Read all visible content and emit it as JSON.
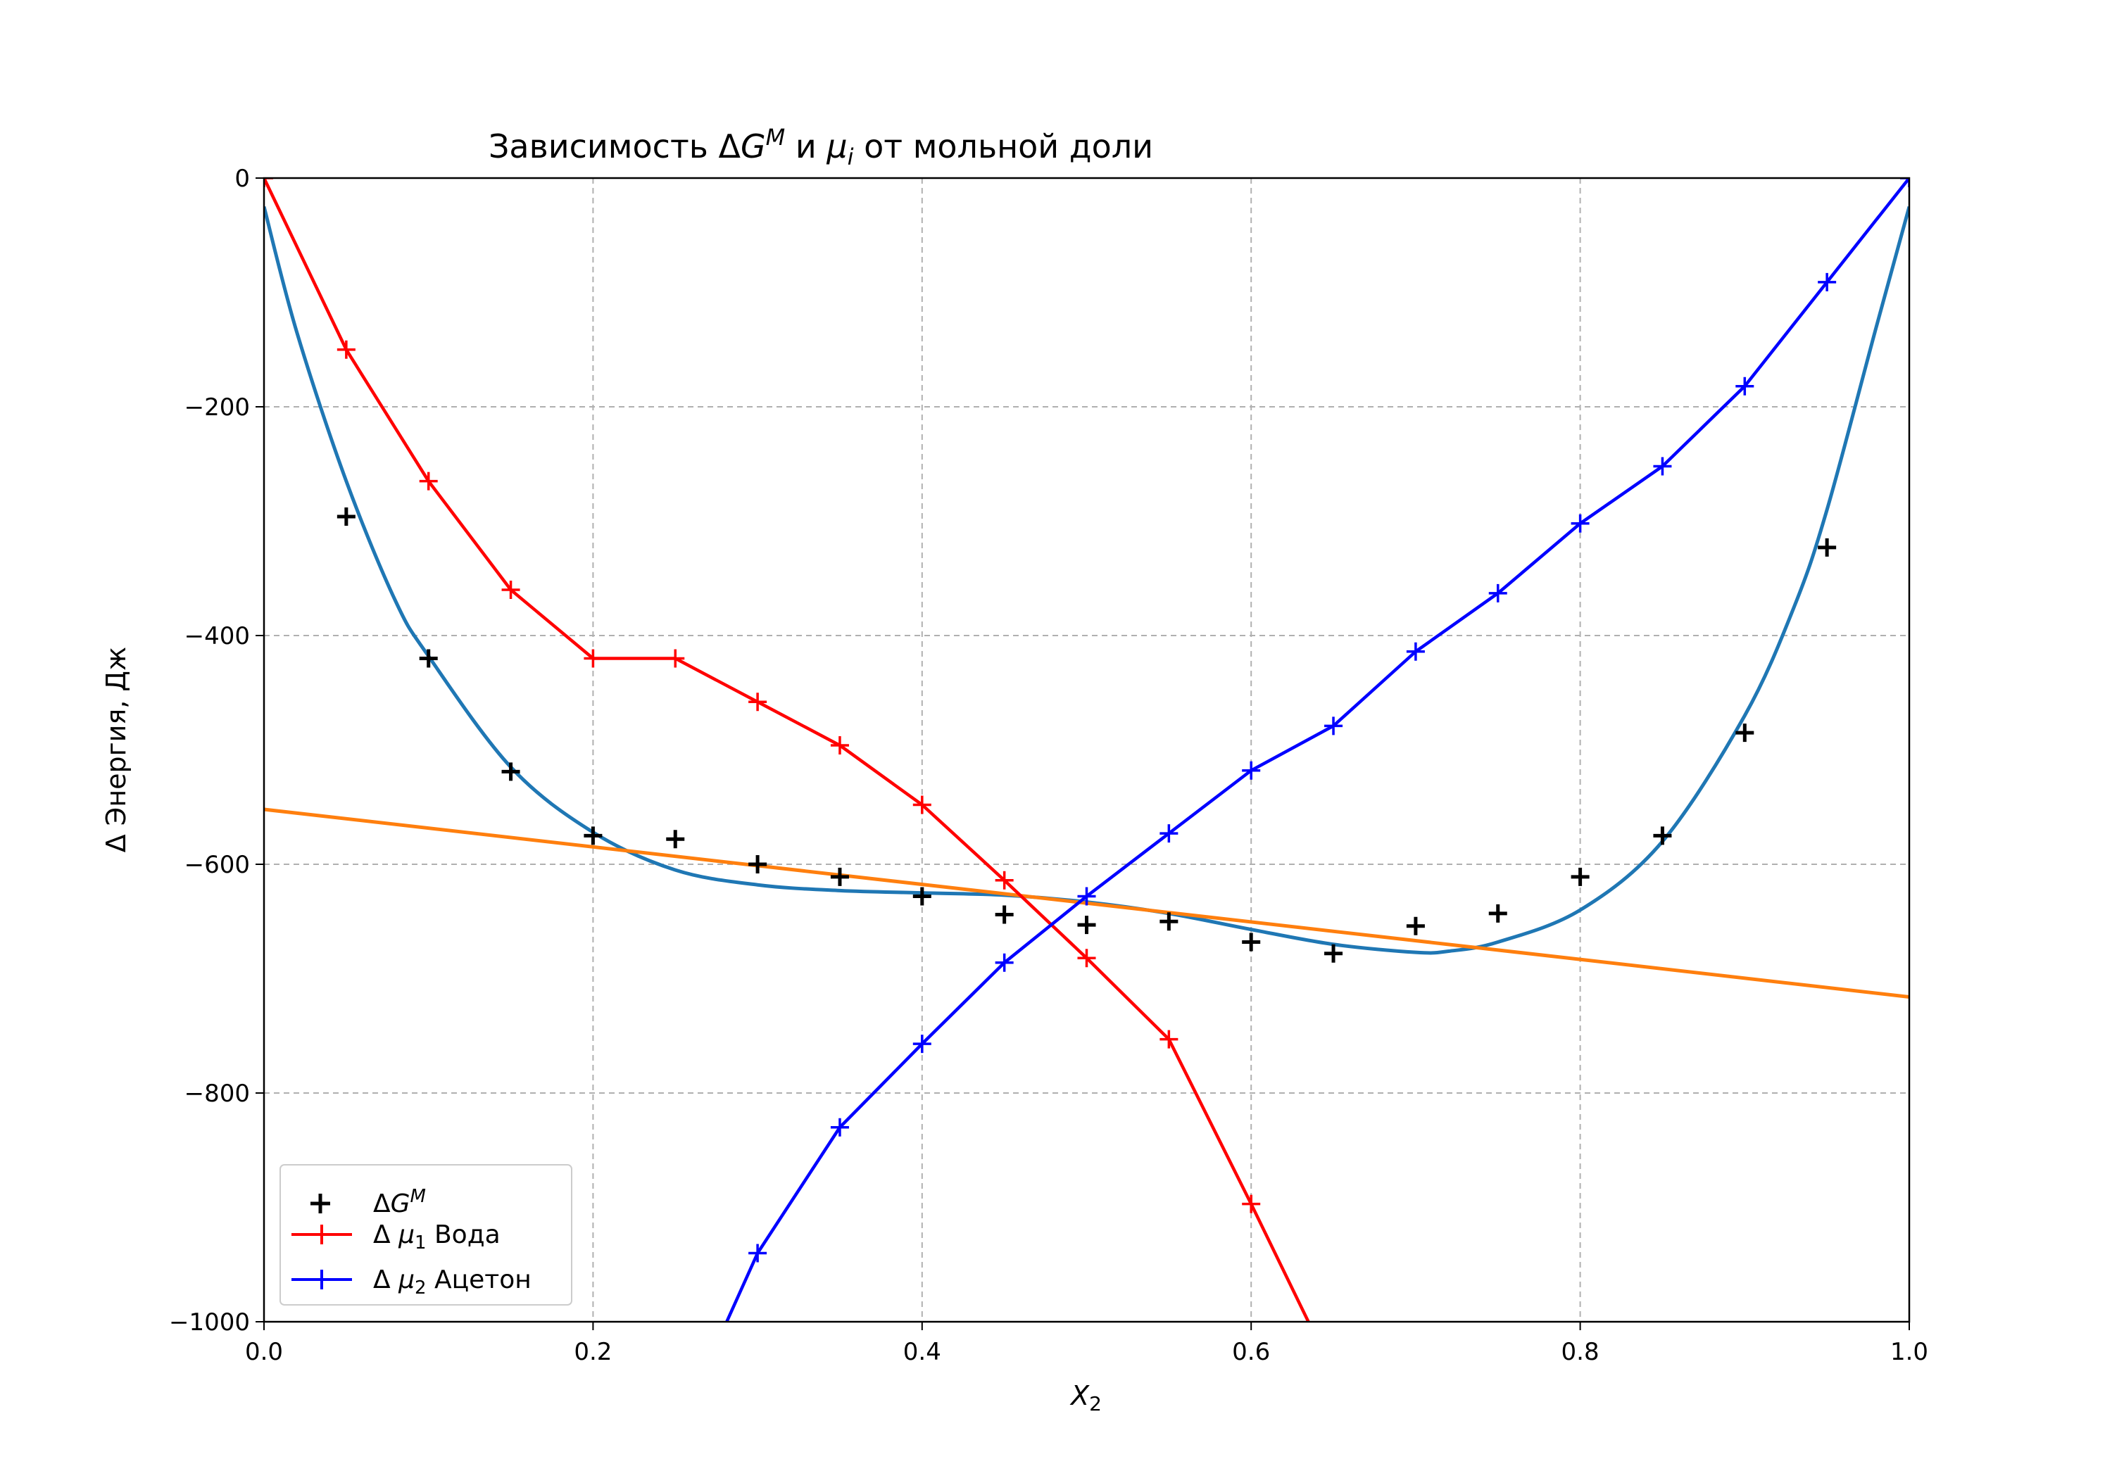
{
  "chart_data": {
    "type": "line",
    "title": {
      "prefix": "Зависимость Δ",
      "g": "G",
      "g_sup": "M",
      "mid": " и ",
      "mu": "μ",
      "mu_sub": "i",
      "suffix": " от мольной доли"
    },
    "xlabel": {
      "base": "X",
      "sub": "2"
    },
    "ylabel": "Δ Энергия, Дж",
    "xlim": [
      0.0,
      1.0
    ],
    "ylim": [
      -1000,
      0
    ],
    "xticks": [
      "0.0",
      "0.2",
      "0.4",
      "0.6",
      "0.8",
      "1.0"
    ],
    "yticks": [
      "0",
      "−200",
      "−400",
      "−600",
      "−800",
      "−1000"
    ],
    "grid": true,
    "legend_position": "lower-left",
    "series": [
      {
        "name": "ΔG^M",
        "legend": {
          "prefix": "Δ",
          "g": "G",
          "sup": "M"
        },
        "kind": "markers",
        "color": "#000000",
        "x": [
          0.05,
          0.1,
          0.15,
          0.2,
          0.25,
          0.3,
          0.35,
          0.4,
          0.45,
          0.5,
          0.55,
          0.6,
          0.65,
          0.7,
          0.75,
          0.8,
          0.85,
          0.9,
          0.95
        ],
        "y": [
          -296,
          -420,
          -519,
          -575,
          -578,
          -600,
          -611,
          -628,
          -644,
          -653,
          -650,
          -668,
          -678,
          -654,
          -643,
          -611,
          -575,
          -485,
          -323
        ]
      },
      {
        "name": "Δ μ1 Вода",
        "legend": {
          "prefix": "Δ ",
          "mu": "μ",
          "sub": "1",
          "suffix": " Вода"
        },
        "kind": "line-markers",
        "color": "#ff0000",
        "x": [
          0.0,
          0.05,
          0.1,
          0.15,
          0.2,
          0.25,
          0.3,
          0.35,
          0.4,
          0.45,
          0.5,
          0.55,
          0.6,
          0.65
        ],
        "y": [
          0,
          -150,
          -265,
          -360,
          -420,
          -420,
          -458,
          -496,
          -548,
          -614,
          -682,
          -753,
          -897,
          -1045
        ]
      },
      {
        "name": "Δ μ2 Ацетон",
        "legend": {
          "prefix": "Δ ",
          "mu": "μ",
          "sub": "2",
          "suffix": " Ацетон"
        },
        "kind": "line-markers",
        "color": "#0000ff",
        "x": [
          0.25,
          0.3,
          0.35,
          0.4,
          0.45,
          0.5,
          0.55,
          0.6,
          0.65,
          0.7,
          0.75,
          0.8,
          0.85,
          0.9,
          0.95,
          1.0
        ],
        "y": [
          -1100,
          -940,
          -830,
          -757,
          -686,
          -628,
          -573,
          -518,
          -479,
          -414,
          -363,
          -302,
          -252,
          -182,
          -91,
          0
        ]
      },
      {
        "kind": "line",
        "color": "#1f77b4",
        "x": [
          0.0,
          0.02,
          0.05,
          0.08,
          0.1,
          0.15,
          0.2,
          0.25,
          0.3,
          0.35,
          0.4,
          0.45,
          0.5,
          0.55,
          0.6,
          0.65,
          0.7,
          0.72,
          0.75,
          0.8,
          0.85,
          0.9,
          0.93,
          0.95,
          0.98,
          1.0
        ],
        "y": [
          -25,
          -135,
          -265,
          -370,
          -418,
          -515,
          -572,
          -605,
          -618,
          -623,
          -625,
          -627,
          -633,
          -643,
          -657,
          -670,
          -677,
          -676,
          -668,
          -640,
          -580,
          -470,
          -375,
          -290,
          -130,
          -25
        ]
      },
      {
        "kind": "line",
        "color": "#ff7f0e",
        "x": [
          0.0,
          1.0
        ],
        "y": [
          -552,
          -716
        ]
      }
    ]
  }
}
